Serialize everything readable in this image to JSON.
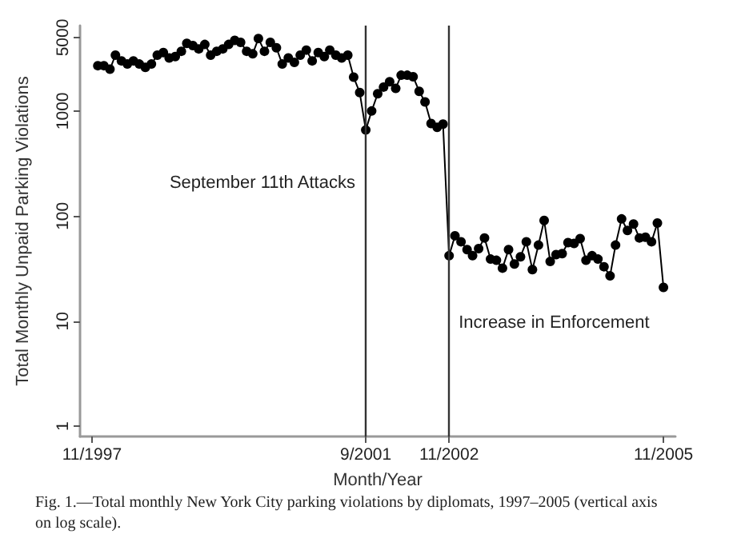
{
  "chart_data": {
    "type": "line",
    "xlabel": "Month/Year",
    "ylabel": "Total Monthly Unpaid Parking Violations",
    "annotations": [
      "Fig. 1.—Total monthly New York City parking violations by diplomats, 1997–2005 (vertical axis on log scale)."
    ],
    "x": [
      "1997-12",
      "1998-01",
      "1998-02",
      "1998-03",
      "1998-04",
      "1998-05",
      "1998-06",
      "1998-07",
      "1998-08",
      "1998-09",
      "1998-10",
      "1998-11",
      "1998-12",
      "1999-01",
      "1999-02",
      "1999-03",
      "1999-04",
      "1999-05",
      "1999-06",
      "1999-07",
      "1999-08",
      "1999-09",
      "1999-10",
      "1999-11",
      "1999-12",
      "2000-01",
      "2000-02",
      "2000-03",
      "2000-04",
      "2000-05",
      "2000-06",
      "2000-07",
      "2000-08",
      "2000-09",
      "2000-10",
      "2000-11",
      "2000-12",
      "2001-01",
      "2001-02",
      "2001-03",
      "2001-04",
      "2001-05",
      "2001-06",
      "2001-07",
      "2001-08",
      "2001-09",
      "2001-10",
      "2001-11",
      "2001-12",
      "2002-01",
      "2002-02",
      "2002-03",
      "2002-04",
      "2002-05",
      "2002-06",
      "2002-07",
      "2002-08",
      "2002-09",
      "2002-10",
      "2002-11",
      "2002-12",
      "2003-01",
      "2003-02",
      "2003-03",
      "2003-04",
      "2003-05",
      "2003-06",
      "2003-07",
      "2003-08",
      "2003-09",
      "2003-10",
      "2003-11",
      "2003-12",
      "2004-01",
      "2004-02",
      "2004-03",
      "2004-04",
      "2004-05",
      "2004-06",
      "2004-07",
      "2004-08",
      "2004-09",
      "2004-10",
      "2004-11",
      "2004-12",
      "2005-01",
      "2005-02",
      "2005-03",
      "2005-04",
      "2005-05",
      "2005-06",
      "2005-07",
      "2005-08",
      "2005-09",
      "2005-10",
      "2005-11"
    ],
    "series": [
      {
        "color": "#000000",
        "values": [
          2700,
          2700,
          2500,
          3400,
          3000,
          2800,
          3000,
          2800,
          2600,
          2800,
          3400,
          3600,
          3200,
          3300,
          3700,
          4400,
          4200,
          3900,
          4300,
          3400,
          3700,
          3900,
          4300,
          4700,
          4500,
          3700,
          3500,
          4900,
          3700,
          4500,
          4000,
          2800,
          3200,
          2900,
          3400,
          3800,
          3000,
          3600,
          3300,
          3800,
          3400,
          3200,
          3400,
          2100,
          1500,
          660,
          1000,
          1460,
          1690,
          1900,
          1640,
          2190,
          2190,
          2120,
          1540,
          1220,
          760,
          700,
          750,
          42,
          65,
          57,
          48,
          42,
          49,
          62,
          39,
          38,
          32,
          48,
          35,
          41,
          57,
          31,
          53,
          91,
          37,
          43,
          44,
          56,
          55,
          61,
          38,
          42,
          39,
          33,
          27,
          53,
          94,
          73,
          84,
          62,
          63,
          57,
          86,
          21
        ]
      }
    ],
    "xlim": [
      "1997-09",
      "2006-01"
    ],
    "xticks": [
      {
        "value": "1997-11",
        "label": "11/1997"
      },
      {
        "value": "2001-09",
        "label": "9/2001"
      },
      {
        "value": "2002-11",
        "label": "11/2002"
      },
      {
        "value": "2005-11",
        "label": "11/2005"
      }
    ],
    "ylim": [
      0.8,
      6500
    ],
    "yticks": [
      1,
      10,
      100,
      1000,
      5000
    ],
    "log": "y",
    "grid": false,
    "marker": "circle",
    "line_style": "solid",
    "ref_lines": [
      {
        "axis": "x",
        "value": "2001-09",
        "label": "September 11th Attacks",
        "color": "#333333"
      },
      {
        "axis": "x",
        "value": "2002-11",
        "label": "Increase in Enforcement",
        "color": "#333333"
      }
    ]
  }
}
